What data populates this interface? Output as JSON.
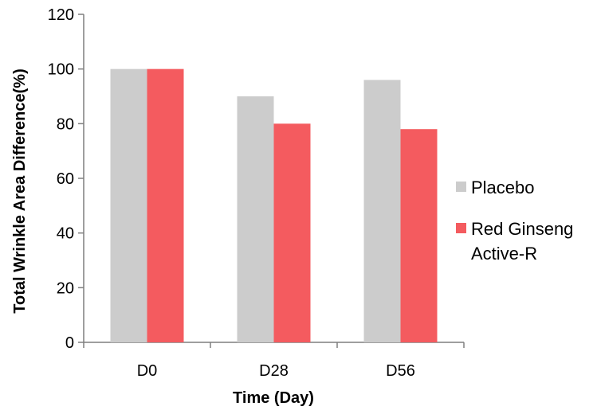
{
  "chart_data": {
    "type": "bar",
    "title": "",
    "xlabel": "Time (Day)",
    "ylabel": "Total Wrinkle Area Difference(%)",
    "categories": [
      "D0",
      "D28",
      "D56"
    ],
    "series": [
      {
        "name": "Placebo",
        "values": [
          100,
          90,
          96
        ],
        "color": "#cccccc"
      },
      {
        "name": "Red Ginseng Active-R",
        "name_lines": [
          "Red Ginseng",
          "Active-R"
        ],
        "values": [
          100,
          80,
          78
        ],
        "color": "#f45b5f"
      }
    ],
    "ylim": [
      0,
      120
    ],
    "yticks": [
      0,
      20,
      40,
      60,
      80,
      100,
      120
    ],
    "grid": false,
    "legend": "right"
  }
}
